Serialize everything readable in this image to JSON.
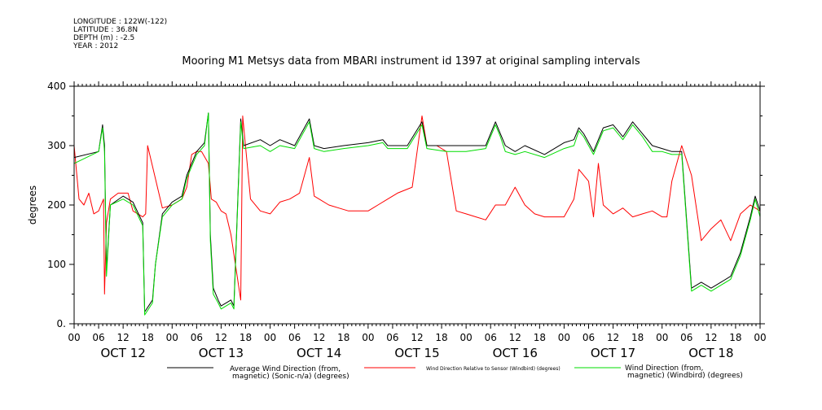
{
  "header": {
    "longitude": "LONGITUDE : 122W(-122)",
    "latitude": "LATITUDE : 36.8N",
    "depth": "DEPTH (m) : -2.5",
    "year": "YEAR : 2012"
  },
  "chart_data": {
    "type": "line",
    "title": "Mooring M1 Metsys data from MBARI instrument id 1397 at original sampling intervals",
    "ylabel": "degrees",
    "ylim": [
      0,
      400
    ],
    "yticks": [
      "0.",
      "100",
      "200",
      "300",
      "400"
    ],
    "xlim_days": [
      0,
      7
    ],
    "hour_labels": [
      "00",
      "06",
      "12",
      "18",
      "00",
      "06",
      "12",
      "18",
      "00",
      "06",
      "12",
      "18",
      "00",
      "06",
      "12",
      "18",
      "00",
      "06",
      "12",
      "18",
      "00",
      "06",
      "12",
      "18",
      "00",
      "06",
      "12",
      "18",
      "00"
    ],
    "day_labels": [
      "OCT 12",
      "OCT 13",
      "OCT 14",
      "OCT 15",
      "OCT 16",
      "OCT 17",
      "OCT 18"
    ],
    "grid": false,
    "legend_position": "bottom",
    "colors": {
      "avg": "#000000",
      "rel": "#ff0000",
      "dir": "#00dd00"
    },
    "series": [
      {
        "key": "avg",
        "name": "Average Wind Direction (from, magnetic) (Sonic-n/a) (degrees)",
        "points": [
          [
            0,
            280
          ],
          [
            0.25,
            290
          ],
          [
            0.29,
            335
          ],
          [
            0.31,
            300
          ],
          [
            0.33,
            90
          ],
          [
            0.37,
            200
          ],
          [
            0.5,
            215
          ],
          [
            0.6,
            205
          ],
          [
            0.7,
            170
          ],
          [
            0.72,
            20
          ],
          [
            0.8,
            40
          ],
          [
            0.83,
            100
          ],
          [
            0.9,
            185
          ],
          [
            1.0,
            205
          ],
          [
            1.1,
            215
          ],
          [
            1.15,
            250
          ],
          [
            1.25,
            290
          ],
          [
            1.33,
            305
          ],
          [
            1.37,
            355
          ],
          [
            1.39,
            150
          ],
          [
            1.42,
            60
          ],
          [
            1.47,
            40
          ],
          [
            1.5,
            30
          ],
          [
            1.6,
            40
          ],
          [
            1.63,
            30
          ],
          [
            1.7,
            345
          ],
          [
            1.73,
            300
          ],
          [
            1.9,
            310
          ],
          [
            2.0,
            300
          ],
          [
            2.1,
            310
          ],
          [
            2.25,
            300
          ],
          [
            2.4,
            345
          ],
          [
            2.45,
            300
          ],
          [
            2.55,
            295
          ],
          [
            2.75,
            300
          ],
          [
            3.0,
            305
          ],
          [
            3.15,
            310
          ],
          [
            3.2,
            300
          ],
          [
            3.4,
            300
          ],
          [
            3.55,
            340
          ],
          [
            3.6,
            300
          ],
          [
            3.8,
            300
          ],
          [
            4.0,
            300
          ],
          [
            4.2,
            300
          ],
          [
            4.3,
            340
          ],
          [
            4.35,
            320
          ],
          [
            4.4,
            300
          ],
          [
            4.5,
            290
          ],
          [
            4.6,
            300
          ],
          [
            4.8,
            285
          ],
          [
            5.0,
            305
          ],
          [
            5.1,
            310
          ],
          [
            5.15,
            330
          ],
          [
            5.2,
            320
          ],
          [
            5.3,
            290
          ],
          [
            5.4,
            330
          ],
          [
            5.5,
            335
          ],
          [
            5.6,
            315
          ],
          [
            5.7,
            340
          ],
          [
            5.8,
            320
          ],
          [
            5.9,
            300
          ],
          [
            6.0,
            295
          ],
          [
            6.1,
            290
          ],
          [
            6.2,
            290
          ],
          [
            6.3,
            60
          ],
          [
            6.4,
            70
          ],
          [
            6.5,
            60
          ],
          [
            6.6,
            70
          ],
          [
            6.7,
            80
          ],
          [
            6.8,
            120
          ],
          [
            6.9,
            180
          ],
          [
            6.95,
            215
          ],
          [
            7.0,
            190
          ]
        ]
      },
      {
        "key": "rel",
        "name": "Wind Direction Relative to Sensor (Windbird) (degrees)",
        "points": [
          [
            0,
            300
          ],
          [
            0.05,
            210
          ],
          [
            0.1,
            200
          ],
          [
            0.15,
            220
          ],
          [
            0.2,
            185
          ],
          [
            0.25,
            190
          ],
          [
            0.3,
            210
          ],
          [
            0.31,
            50
          ],
          [
            0.33,
            170
          ],
          [
            0.37,
            210
          ],
          [
            0.45,
            220
          ],
          [
            0.55,
            220
          ],
          [
            0.6,
            190
          ],
          [
            0.7,
            180
          ],
          [
            0.73,
            185
          ],
          [
            0.75,
            300
          ],
          [
            0.9,
            195
          ],
          [
            1.0,
            200
          ],
          [
            1.1,
            210
          ],
          [
            1.15,
            230
          ],
          [
            1.2,
            285
          ],
          [
            1.25,
            290
          ],
          [
            1.3,
            290
          ],
          [
            1.37,
            270
          ],
          [
            1.4,
            210
          ],
          [
            1.45,
            205
          ],
          [
            1.5,
            190
          ],
          [
            1.55,
            185
          ],
          [
            1.6,
            150
          ],
          [
            1.7,
            40
          ],
          [
            1.72,
            350
          ],
          [
            1.8,
            210
          ],
          [
            1.9,
            190
          ],
          [
            2.0,
            185
          ],
          [
            2.1,
            205
          ],
          [
            2.2,
            210
          ],
          [
            2.3,
            220
          ],
          [
            2.4,
            280
          ],
          [
            2.45,
            215
          ],
          [
            2.5,
            210
          ],
          [
            2.6,
            200
          ],
          [
            2.7,
            195
          ],
          [
            2.8,
            190
          ],
          [
            3.0,
            190
          ],
          [
            3.1,
            200
          ],
          [
            3.2,
            210
          ],
          [
            3.3,
            220
          ],
          [
            3.45,
            230
          ],
          [
            3.55,
            350
          ],
          [
            3.6,
            300
          ],
          [
            3.7,
            300
          ],
          [
            3.8,
            290
          ],
          [
            3.9,
            190
          ],
          [
            4.0,
            185
          ],
          [
            4.1,
            180
          ],
          [
            4.2,
            175
          ],
          [
            4.3,
            200
          ],
          [
            4.4,
            200
          ],
          [
            4.5,
            230
          ],
          [
            4.6,
            200
          ],
          [
            4.7,
            185
          ],
          [
            4.8,
            180
          ],
          [
            5.0,
            180
          ],
          [
            5.1,
            210
          ],
          [
            5.15,
            260
          ],
          [
            5.25,
            240
          ],
          [
            5.3,
            180
          ],
          [
            5.35,
            270
          ],
          [
            5.4,
            200
          ],
          [
            5.5,
            185
          ],
          [
            5.6,
            195
          ],
          [
            5.7,
            180
          ],
          [
            5.8,
            185
          ],
          [
            5.9,
            190
          ],
          [
            6.0,
            180
          ],
          [
            6.05,
            180
          ],
          [
            6.1,
            240
          ],
          [
            6.2,
            300
          ],
          [
            6.3,
            250
          ],
          [
            6.35,
            195
          ],
          [
            6.4,
            140
          ],
          [
            6.5,
            160
          ],
          [
            6.6,
            175
          ],
          [
            6.7,
            140
          ],
          [
            6.8,
            185
          ],
          [
            6.9,
            200
          ],
          [
            7.0,
            190
          ]
        ]
      },
      {
        "key": "dir",
        "name": "Wind Direction (from, magnetic) (Windbird) (degrees)",
        "points": [
          [
            0,
            270
          ],
          [
            0.25,
            290
          ],
          [
            0.29,
            330
          ],
          [
            0.31,
            290
          ],
          [
            0.33,
            80
          ],
          [
            0.37,
            200
          ],
          [
            0.5,
            210
          ],
          [
            0.6,
            200
          ],
          [
            0.7,
            165
          ],
          [
            0.72,
            15
          ],
          [
            0.8,
            35
          ],
          [
            0.83,
            100
          ],
          [
            0.9,
            180
          ],
          [
            1.0,
            200
          ],
          [
            1.1,
            210
          ],
          [
            1.15,
            245
          ],
          [
            1.25,
            285
          ],
          [
            1.33,
            300
          ],
          [
            1.37,
            355
          ],
          [
            1.39,
            140
          ],
          [
            1.42,
            50
          ],
          [
            1.47,
            35
          ],
          [
            1.5,
            25
          ],
          [
            1.6,
            35
          ],
          [
            1.63,
            25
          ],
          [
            1.7,
            340
          ],
          [
            1.73,
            295
          ],
          [
            1.9,
            300
          ],
          [
            2.0,
            290
          ],
          [
            2.1,
            300
          ],
          [
            2.25,
            295
          ],
          [
            2.4,
            340
          ],
          [
            2.45,
            295
          ],
          [
            2.55,
            290
          ],
          [
            2.75,
            295
          ],
          [
            3.0,
            300
          ],
          [
            3.15,
            305
          ],
          [
            3.2,
            295
          ],
          [
            3.4,
            295
          ],
          [
            3.55,
            335
          ],
          [
            3.6,
            295
          ],
          [
            3.8,
            290
          ],
          [
            4.0,
            290
          ],
          [
            4.2,
            295
          ],
          [
            4.3,
            335
          ],
          [
            4.35,
            315
          ],
          [
            4.4,
            290
          ],
          [
            4.5,
            285
          ],
          [
            4.6,
            290
          ],
          [
            4.8,
            280
          ],
          [
            5.0,
            295
          ],
          [
            5.1,
            300
          ],
          [
            5.15,
            325
          ],
          [
            5.2,
            315
          ],
          [
            5.3,
            285
          ],
          [
            5.4,
            325
          ],
          [
            5.5,
            330
          ],
          [
            5.6,
            310
          ],
          [
            5.7,
            335
          ],
          [
            5.8,
            315
          ],
          [
            5.9,
            290
          ],
          [
            6.0,
            290
          ],
          [
            6.1,
            285
          ],
          [
            6.2,
            285
          ],
          [
            6.3,
            55
          ],
          [
            6.4,
            65
          ],
          [
            6.5,
            55
          ],
          [
            6.6,
            65
          ],
          [
            6.7,
            75
          ],
          [
            6.8,
            115
          ],
          [
            6.9,
            175
          ],
          [
            6.95,
            210
          ],
          [
            7.0,
            180
          ]
        ]
      }
    ]
  }
}
